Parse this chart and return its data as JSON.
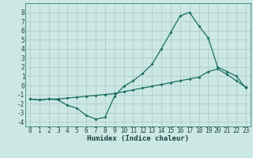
{
  "xlabel": "Humidex (Indice chaleur)",
  "bg_color": "#cce8e4",
  "grid_color": "#b0ccc8",
  "line_color": "#1a6e64",
  "xlim": [
    -0.5,
    23.5
  ],
  "ylim": [
    -4.5,
    9.0
  ],
  "xticks": [
    0,
    1,
    2,
    3,
    4,
    5,
    6,
    7,
    8,
    9,
    10,
    11,
    12,
    13,
    14,
    15,
    16,
    17,
    18,
    19,
    20,
    21,
    22,
    23
  ],
  "yticks": [
    -4,
    -3,
    -2,
    -1,
    0,
    1,
    2,
    3,
    4,
    5,
    6,
    7,
    8
  ],
  "line1_x": [
    0,
    1,
    2,
    3,
    4,
    5,
    6,
    7,
    8,
    9,
    10,
    11,
    12,
    13,
    14,
    15,
    16,
    17,
    18,
    19,
    20,
    21,
    22,
    23
  ],
  "line1_y": [
    -1.5,
    -1.6,
    -1.5,
    -1.6,
    -2.2,
    -2.5,
    -3.3,
    -3.7,
    -3.5,
    -1.2,
    -0.1,
    0.5,
    1.3,
    2.3,
    4.0,
    5.8,
    7.6,
    8.0,
    6.5,
    5.2,
    2.0,
    1.5,
    1.0,
    -0.3
  ],
  "line2_x": [
    0,
    1,
    2,
    3,
    4,
    5,
    6,
    7,
    8,
    9,
    10,
    11,
    12,
    13,
    14,
    15,
    16,
    17,
    18,
    19,
    20,
    21,
    22,
    23
  ],
  "line2_y": [
    -1.5,
    -1.6,
    -1.5,
    -1.5,
    -1.4,
    -1.3,
    -1.2,
    -1.1,
    -1.0,
    -0.9,
    -0.7,
    -0.5,
    -0.3,
    -0.1,
    0.1,
    0.3,
    0.5,
    0.7,
    0.9,
    1.5,
    1.8,
    1.2,
    0.5,
    -0.2
  ],
  "marker_size": 2.0,
  "line_width": 0.9,
  "tick_fontsize": 5.5,
  "xlabel_fontsize": 6.5
}
